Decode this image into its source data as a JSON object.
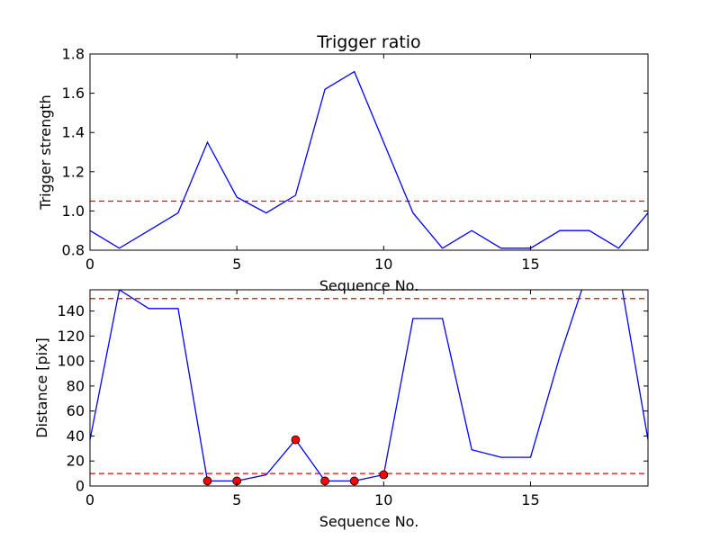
{
  "chart_data": [
    {
      "type": "line",
      "title": "Trigger ratio",
      "xlabel": "Sequence No.",
      "ylabel": "Trigger strength",
      "xlim": [
        0,
        19
      ],
      "ylim": [
        0.8,
        1.8
      ],
      "xticks": [
        0,
        5,
        10,
        15
      ],
      "xtick_labels": [
        "0",
        "5",
        "10",
        "15"
      ],
      "yticks": [
        0.8,
        1.0,
        1.2,
        1.4,
        1.6,
        1.8
      ],
      "ytick_labels": [
        "0.8",
        "1.0",
        "1.2",
        "1.4",
        "1.6",
        "1.8"
      ],
      "grid": false,
      "series": [
        {
          "color": "#0000ff",
          "style": "solid",
          "x": [
            0,
            1,
            2,
            3,
            4,
            5,
            6,
            7,
            8,
            9,
            10,
            11,
            12,
            13,
            14,
            15,
            16,
            17,
            18,
            19
          ],
          "values": [
            0.9,
            0.81,
            0.9,
            0.99,
            1.35,
            1.07,
            0.99,
            1.08,
            1.62,
            1.71,
            1.35,
            0.99,
            0.81,
            0.9,
            0.81,
            0.81,
            0.9,
            0.9,
            0.81,
            0.99
          ]
        }
      ],
      "hlines": [
        {
          "y": 1.05,
          "color": "#ff0000",
          "style": "dashed"
        }
      ]
    },
    {
      "type": "line",
      "title": "",
      "xlabel": "Sequence No.",
      "ylabel": "Distance [pix]",
      "xlim": [
        0,
        19
      ],
      "ylim": [
        0,
        157
      ],
      "xticks": [
        0,
        5,
        10,
        15
      ],
      "xtick_labels": [
        "0",
        "5",
        "10",
        "15"
      ],
      "yticks": [
        0,
        20,
        40,
        60,
        80,
        100,
        120,
        140
      ],
      "ytick_labels": [
        "0",
        "20",
        "40",
        "60",
        "80",
        "100",
        "120",
        "140"
      ],
      "grid": false,
      "series": [
        {
          "color": "#0000ff",
          "style": "solid",
          "x": [
            0,
            1,
            2,
            3,
            4,
            5,
            6,
            7,
            8,
            9,
            10,
            11,
            12,
            13,
            14,
            15,
            16,
            17,
            18,
            19
          ],
          "values": [
            37,
            157,
            142,
            142,
            4,
            4,
            9,
            37,
            4,
            4,
            9,
            134,
            134,
            29,
            23,
            23,
            104,
            175,
            174,
            37
          ]
        }
      ],
      "markers": {
        "color": "#ff0000",
        "x": [
          4,
          5,
          7,
          8,
          9,
          10
        ],
        "values": [
          4,
          4,
          37,
          4,
          4,
          9
        ]
      },
      "hlines": [
        {
          "y": 150,
          "color": "#ff0000",
          "style": "dashed"
        },
        {
          "y": 10,
          "color": "#ff0000",
          "style": "dashed"
        }
      ]
    }
  ]
}
